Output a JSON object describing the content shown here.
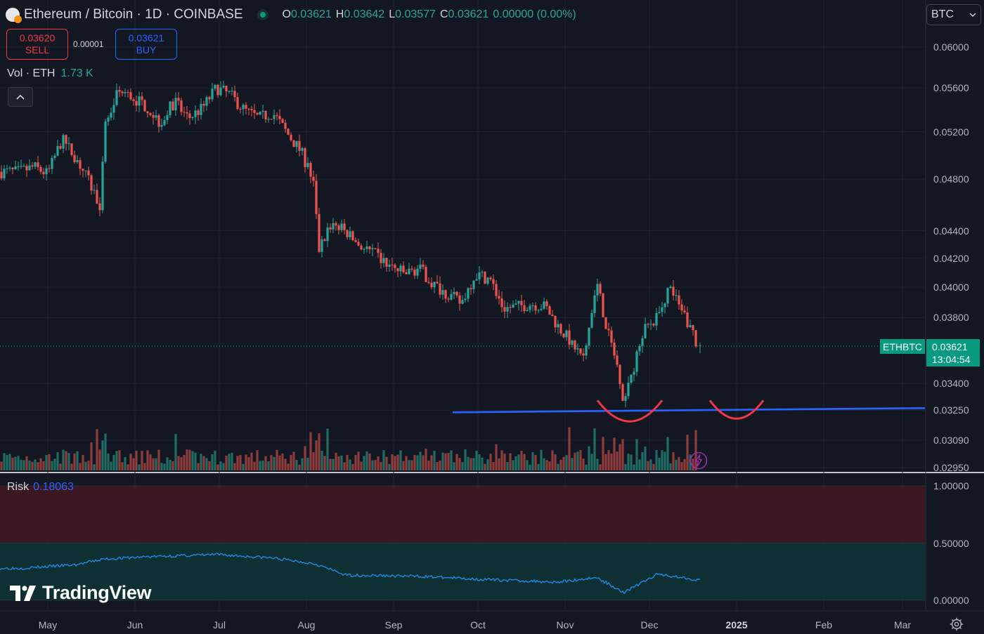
{
  "header": {
    "title": "Ethereum / Bitcoin · 1D · COINBASE",
    "ohlc": {
      "o_label": "O",
      "o": "0.03621",
      "h_label": "H",
      "h": "0.03642",
      "l_label": "L",
      "l": "0.03577",
      "c_label": "C",
      "c": "0.03621",
      "change": "0.00000 (0.00%)"
    }
  },
  "trade": {
    "sell_price": "0.03620",
    "sell_label": "SELL",
    "spread": "0.00001",
    "buy_price": "0.03621",
    "buy_label": "BUY"
  },
  "volume": {
    "label": "Vol · ETH",
    "value": "1.73 K"
  },
  "currency": {
    "label": "BTC"
  },
  "price_tag": {
    "symbol": "ETHBTC",
    "price": "0.03621",
    "countdown": "13:04:54"
  },
  "risk": {
    "label": "Risk",
    "value": "0.18063"
  },
  "brand": {
    "name": "TradingView"
  },
  "icons": {
    "symbol": "eth-btc-icon",
    "status": "market-open-dot",
    "collapse": "chevron-up-icon",
    "currency": "chevron-down-icon",
    "settings": "gear-icon",
    "alert": "lightning-icon"
  },
  "colors": {
    "background": "#131722",
    "up": "#26a69a",
    "down": "#ef5350",
    "volume_up": "#1f6b62",
    "volume_down": "#8e3b3b",
    "support_line": "#2962ff",
    "annotation": "#f23645",
    "risk_line": "#1e88e5",
    "risk_glow": "#2ed3b0",
    "risk_high_zone": "#4a1a20",
    "risk_low_zone": "#0d3a38"
  },
  "chart_data": [
    {
      "type": "candlestick",
      "symbol": "ETHBTC",
      "interval": "1D",
      "exchange": "COINBASE",
      "x_ticks": [
        "May",
        "Jun",
        "Jul",
        "Aug",
        "Sep",
        "Oct",
        "Nov",
        "Dec",
        "2025",
        "Feb",
        "Mar"
      ],
      "y_ticks": [
        "0.06000",
        "0.05600",
        "0.05200",
        "0.04800",
        "0.04400",
        "0.04200",
        "0.04000",
        "0.03800",
        "0.03400",
        "0.03250",
        "0.03090",
        "0.02950"
      ],
      "y_scale": "log",
      "ylim": [
        0.0295,
        0.0615
      ],
      "grid": true,
      "last_price": 0.03621,
      "support_level": 0.0325,
      "annotations": [
        "cup-and-handle arcs near 0.03250"
      ],
      "close_series": {
        "dates": [
          "2024-04-21",
          "2024-04-26",
          "2024-05-01",
          "2024-05-06",
          "2024-05-11",
          "2024-05-16",
          "2024-05-20",
          "2024-05-21",
          "2024-05-26",
          "2024-05-31",
          "2024-06-05",
          "2024-06-10",
          "2024-06-15",
          "2024-06-20",
          "2024-06-25",
          "2024-06-30",
          "2024-07-05",
          "2024-07-10",
          "2024-07-15",
          "2024-07-20",
          "2024-07-25",
          "2024-07-30",
          "2024-08-04",
          "2024-08-05",
          "2024-08-10",
          "2024-08-15",
          "2024-08-20",
          "2024-08-25",
          "2024-08-30",
          "2024-09-05",
          "2024-09-10",
          "2024-09-15",
          "2024-09-20",
          "2024-09-25",
          "2024-09-30",
          "2024-10-05",
          "2024-10-10",
          "2024-10-15",
          "2024-10-20",
          "2024-10-25",
          "2024-10-30",
          "2024-11-04",
          "2024-11-08",
          "2024-11-12",
          "2024-11-16",
          "2024-11-20",
          "2024-11-22",
          "2024-11-26",
          "2024-11-30",
          "2024-12-04",
          "2024-12-08",
          "2024-12-12",
          "2024-12-16",
          "2024-12-18"
        ],
        "close": [
          0.0486,
          0.049,
          0.0484,
          0.0513,
          0.0498,
          0.0476,
          0.0458,
          0.0521,
          0.0557,
          0.0551,
          0.0543,
          0.0528,
          0.0547,
          0.0532,
          0.0541,
          0.056,
          0.0553,
          0.0539,
          0.0532,
          0.0537,
          0.0519,
          0.0503,
          0.0476,
          0.0424,
          0.0446,
          0.0439,
          0.0429,
          0.0423,
          0.0415,
          0.0409,
          0.0413,
          0.0402,
          0.0396,
          0.0389,
          0.0409,
          0.0406,
          0.0386,
          0.0387,
          0.0389,
          0.0387,
          0.0373,
          0.0363,
          0.0354,
          0.0405,
          0.0371,
          0.0348,
          0.0329,
          0.0353,
          0.0375,
          0.038,
          0.0401,
          0.0385,
          0.0372,
          0.0362
        ]
      }
    },
    {
      "type": "bar",
      "name": "Vol · ETH",
      "last_value": "1.73 K"
    },
    {
      "type": "line",
      "name": "Risk",
      "last_value": 0.18063,
      "y_ticks": [
        "1.00000",
        "0.50000",
        "0.00000"
      ],
      "ylim": [
        0,
        1
      ],
      "zones": [
        {
          "from": 0.5,
          "to": 1.0,
          "color": "#4a1a20"
        },
        {
          "from": 0.0,
          "to": 0.5,
          "color": "#0d3a38"
        }
      ],
      "dates": [
        "2024-04-21",
        "2024-05-11",
        "2024-05-21",
        "2024-06-05",
        "2024-06-30",
        "2024-07-20",
        "2024-08-04",
        "2024-08-15",
        "2024-09-10",
        "2024-10-05",
        "2024-10-30",
        "2024-11-12",
        "2024-11-22",
        "2024-12-04",
        "2024-12-18"
      ],
      "values": [
        0.28,
        0.31,
        0.36,
        0.38,
        0.4,
        0.37,
        0.32,
        0.22,
        0.21,
        0.18,
        0.16,
        0.2,
        0.07,
        0.23,
        0.18
      ]
    }
  ]
}
